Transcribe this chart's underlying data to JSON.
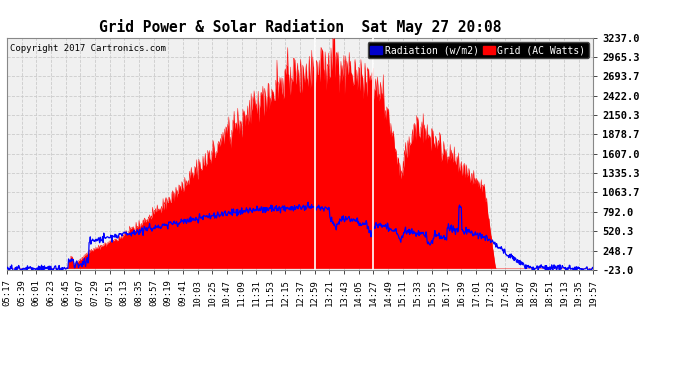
{
  "title": "Grid Power & Solar Radiation  Sat May 27 20:08",
  "copyright": "Copyright 2017 Cartronics.com",
  "background_color": "#ffffff",
  "plot_bg_color": "#f0f0f0",
  "grid_color": "#cccccc",
  "yticks": [
    -23.0,
    248.7,
    520.3,
    792.0,
    1063.7,
    1335.3,
    1607.0,
    1878.7,
    2150.3,
    2422.0,
    2693.7,
    2965.3,
    3237.0
  ],
  "ymin": -23.0,
  "ymax": 3237.0,
  "radiation_color": "#0000ff",
  "grid_power_color": "#ff0000",
  "legend_radiation_label": "Radiation (w/m2)",
  "legend_grid_label": "Grid (AC Watts)",
  "x_labels": [
    "05:17",
    "05:39",
    "06:01",
    "06:23",
    "06:45",
    "07:07",
    "07:29",
    "07:51",
    "08:13",
    "08:35",
    "08:57",
    "09:19",
    "09:41",
    "10:03",
    "10:25",
    "10:47",
    "11:09",
    "11:31",
    "11:53",
    "12:15",
    "12:37",
    "12:59",
    "13:21",
    "13:43",
    "14:05",
    "14:27",
    "14:49",
    "15:11",
    "15:33",
    "15:55",
    "16:17",
    "16:39",
    "17:01",
    "17:23",
    "17:45",
    "18:07",
    "18:29",
    "18:51",
    "19:13",
    "19:35",
    "19:57"
  ],
  "white_vline1": 21,
  "white_vline2": 25,
  "seed": 42
}
